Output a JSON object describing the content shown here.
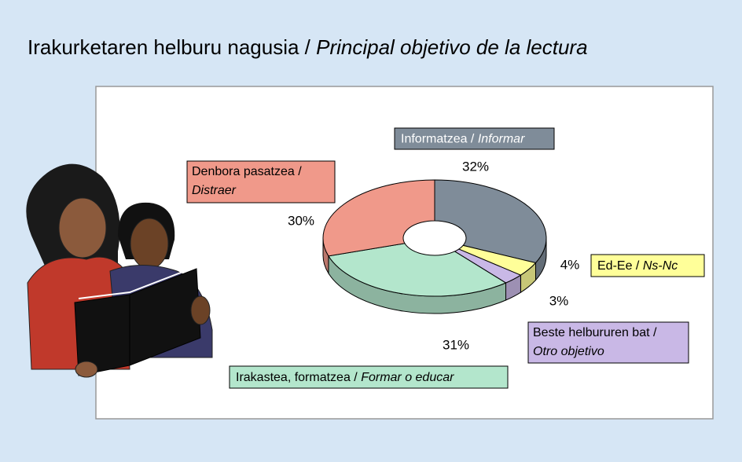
{
  "chart_data": {
    "type": "donut3d",
    "title": {
      "main": "Irakurketaren helburu nagusia /",
      "italic": "Principal objetivo de la lectura"
    },
    "categories": [
      "Informatzea /",
      "Ed-Ee  /",
      "Beste helbururen bat /",
      "Irakastea, formatzea /",
      "Denbora pasatzea /"
    ],
    "categories_es": [
      "Informar",
      "Ns-Nc",
      "Otro objetivo",
      "Formar o educar",
      "Distraer"
    ],
    "values": [
      32,
      4,
      3,
      31,
      30
    ],
    "value_labels": [
      "32%",
      "4%",
      "3%",
      "31%",
      "30%"
    ],
    "colors": [
      "#7f8c99",
      "#ffff99",
      "#c9b8e6",
      "#b3e6cc",
      "#f0998a"
    ]
  }
}
